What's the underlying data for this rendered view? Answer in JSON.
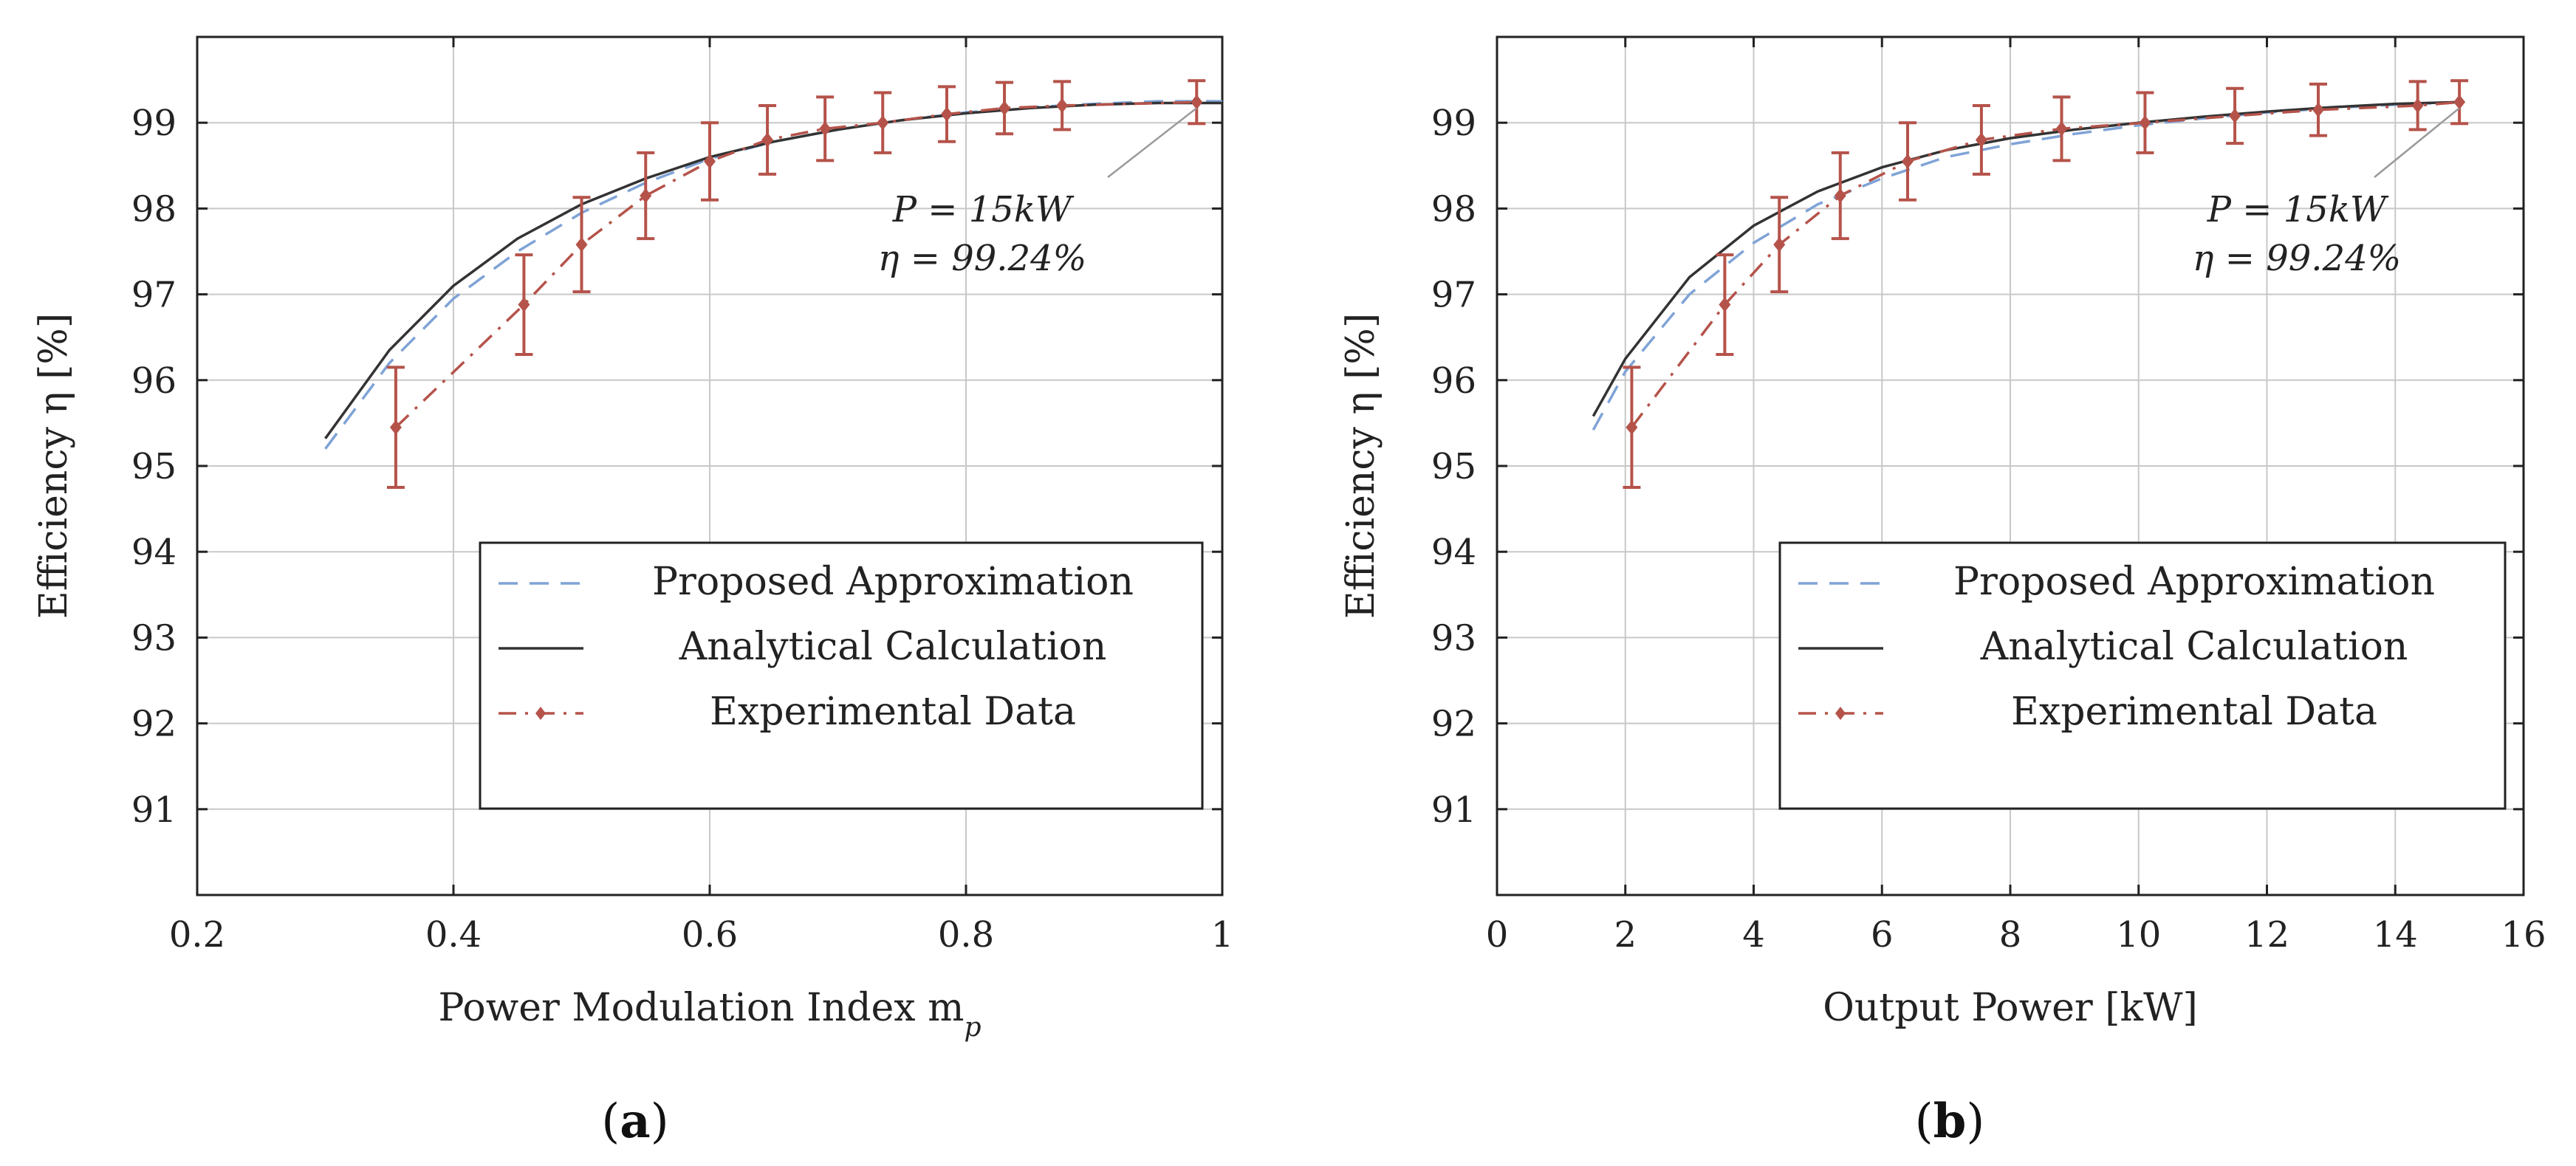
{
  "chart_data": [
    {
      "type": "line",
      "panel_label": {
        "open": "(",
        "letter": "a",
        "close": ")"
      },
      "xlabel": "Power Modulation Index m",
      "xlabel_sub": "p",
      "ylabel": "Efficiency η [%]",
      "xlim": [
        0.2,
        1.0
      ],
      "ylim": [
        90,
        100
      ],
      "xticks": [
        0.2,
        0.4,
        0.6,
        0.8,
        1.0
      ],
      "xtick_labels": [
        "0.2",
        "0.4",
        "0.6",
        "0.8",
        "1"
      ],
      "yticks": [
        91,
        92,
        93,
        94,
        95,
        96,
        97,
        98,
        99
      ],
      "grid": true,
      "legend_position": "bottom-right",
      "annotation": {
        "line1": "P = 15kW",
        "line2": "η = 99.24%",
        "x": 0.98,
        "y": 99.24
      },
      "series": [
        {
          "name": "Proposed Approximation",
          "style": "dashed",
          "color": "#7fa3d6",
          "x": [
            0.3,
            0.35,
            0.4,
            0.45,
            0.5,
            0.55,
            0.6,
            0.65,
            0.7,
            0.75,
            0.8,
            0.85,
            0.9,
            0.95,
            1.0
          ],
          "y": [
            95.2,
            96.2,
            96.95,
            97.5,
            97.95,
            98.3,
            98.58,
            98.78,
            98.92,
            99.03,
            99.12,
            99.18,
            99.22,
            99.25,
            99.25
          ]
        },
        {
          "name": "Analytical Calculation",
          "style": "solid",
          "color": "#333333",
          "x": [
            0.3,
            0.35,
            0.4,
            0.45,
            0.5,
            0.55,
            0.6,
            0.65,
            0.7,
            0.75,
            0.8,
            0.85,
            0.9,
            0.95,
            1.0
          ],
          "y": [
            95.32,
            96.35,
            97.1,
            97.65,
            98.05,
            98.35,
            98.6,
            98.78,
            98.92,
            99.03,
            99.11,
            99.17,
            99.21,
            99.23,
            99.23
          ]
        },
        {
          "name": "Experimental Data",
          "style": "dashdot",
          "color": "#b5534a",
          "x": [
            0.355,
            0.455,
            0.5,
            0.55,
            0.6,
            0.645,
            0.69,
            0.735,
            0.785,
            0.83,
            0.875,
            0.98
          ],
          "y": [
            95.45,
            96.88,
            97.58,
            98.15,
            98.55,
            98.8,
            98.93,
            99.0,
            99.1,
            99.17,
            99.2,
            99.24
          ],
          "err": [
            0.7,
            0.58,
            0.55,
            0.5,
            0.45,
            0.4,
            0.37,
            0.35,
            0.32,
            0.3,
            0.28,
            0.25
          ]
        }
      ]
    },
    {
      "type": "line",
      "panel_label": {
        "open": "(",
        "letter": "b",
        "close": ")"
      },
      "xlabel": "Output Power [kW]",
      "xlabel_sub": "",
      "ylabel": "Efficiency η [%]",
      "xlim": [
        0,
        16
      ],
      "ylim": [
        90,
        100
      ],
      "xticks": [
        0,
        2,
        4,
        6,
        8,
        10,
        12,
        14,
        16
      ],
      "xtick_labels": [
        "0",
        "2",
        "4",
        "6",
        "8",
        "10",
        "12",
        "14",
        "16"
      ],
      "yticks": [
        91,
        92,
        93,
        94,
        95,
        96,
        97,
        98,
        99
      ],
      "grid": true,
      "legend_position": "bottom-right",
      "annotation": {
        "line1": "P = 15kW",
        "line2": "η = 99.24%",
        "x": 15.0,
        "y": 99.24
      },
      "series": [
        {
          "name": "Proposed Approximation",
          "style": "dashed",
          "color": "#7fa3d6",
          "x": [
            1.5,
            2,
            3,
            4,
            5,
            6,
            7,
            8,
            9,
            10,
            11,
            12,
            13,
            14,
            15
          ],
          "y": [
            95.42,
            96.1,
            97.0,
            97.6,
            98.05,
            98.35,
            98.6,
            98.75,
            98.87,
            98.97,
            99.05,
            99.12,
            99.17,
            99.21,
            99.24
          ]
        },
        {
          "name": "Analytical Calculation",
          "style": "solid",
          "color": "#333333",
          "x": [
            1.5,
            2,
            3,
            4,
            5,
            6,
            7,
            8,
            9,
            10,
            11,
            12,
            13,
            14,
            15
          ],
          "y": [
            95.58,
            96.25,
            97.2,
            97.8,
            98.2,
            98.48,
            98.68,
            98.82,
            98.92,
            99.0,
            99.07,
            99.13,
            99.18,
            99.22,
            99.24
          ]
        },
        {
          "name": "Experimental Data",
          "style": "dashdot",
          "color": "#b5534a",
          "x": [
            2.1,
            3.55,
            4.4,
            5.35,
            6.4,
            7.55,
            8.8,
            10.1,
            11.5,
            12.8,
            14.35,
            15.0
          ],
          "y": [
            95.45,
            96.88,
            97.58,
            98.15,
            98.55,
            98.8,
            98.93,
            99.0,
            99.08,
            99.15,
            99.2,
            99.24
          ],
          "err": [
            0.7,
            0.58,
            0.55,
            0.5,
            0.45,
            0.4,
            0.37,
            0.35,
            0.32,
            0.3,
            0.28,
            0.25
          ]
        }
      ]
    }
  ]
}
